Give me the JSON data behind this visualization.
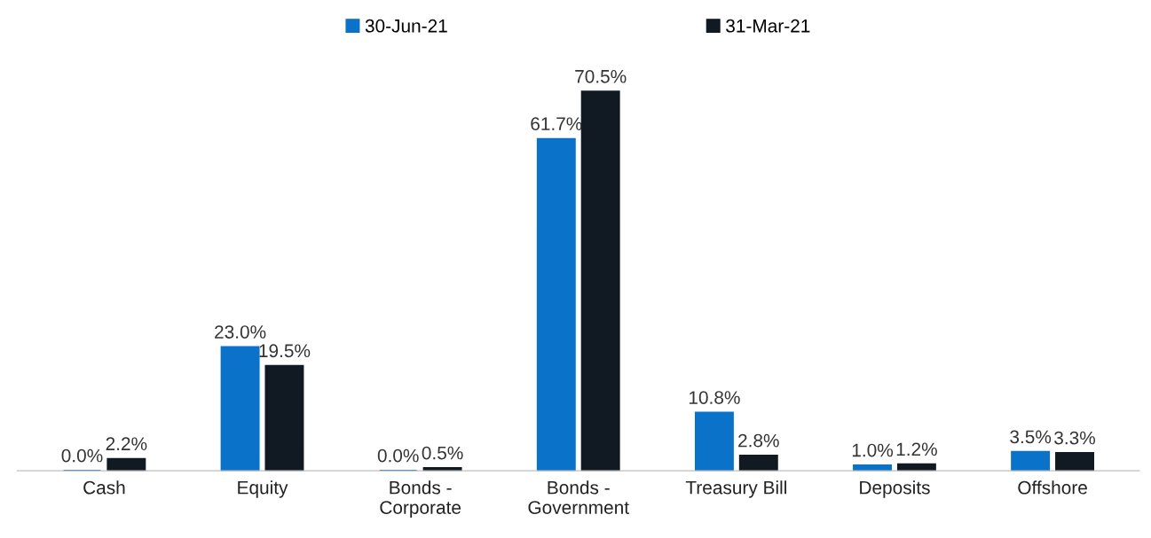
{
  "chart_data": {
    "type": "bar",
    "categories": [
      "Cash",
      "Equity",
      "Bonds -\nCorporate",
      "Bonds -\nGovernment",
      "Treasury Bill",
      "Deposits",
      "Offshore"
    ],
    "series": [
      {
        "name": "30-Jun-21",
        "color": "#0a72c8",
        "values": [
          0.0,
          23.0,
          0.0,
          61.7,
          10.8,
          1.0,
          3.5
        ],
        "value_labels": [
          "0.0%",
          "23.0%",
          "0.0%",
          "61.7%",
          "10.8%",
          "1.0%",
          "3.5%"
        ]
      },
      {
        "name": "31-Mar-21",
        "color": "#111a22",
        "values": [
          2.2,
          19.5,
          0.5,
          70.5,
          2.8,
          1.2,
          3.3
        ],
        "value_labels": [
          "2.2%",
          "19.5%",
          "0.5%",
          "70.5%",
          "2.8%",
          "1.2%",
          "3.3%"
        ]
      }
    ],
    "legend": "top",
    "grid": false,
    "tick_labels": "x"
  }
}
